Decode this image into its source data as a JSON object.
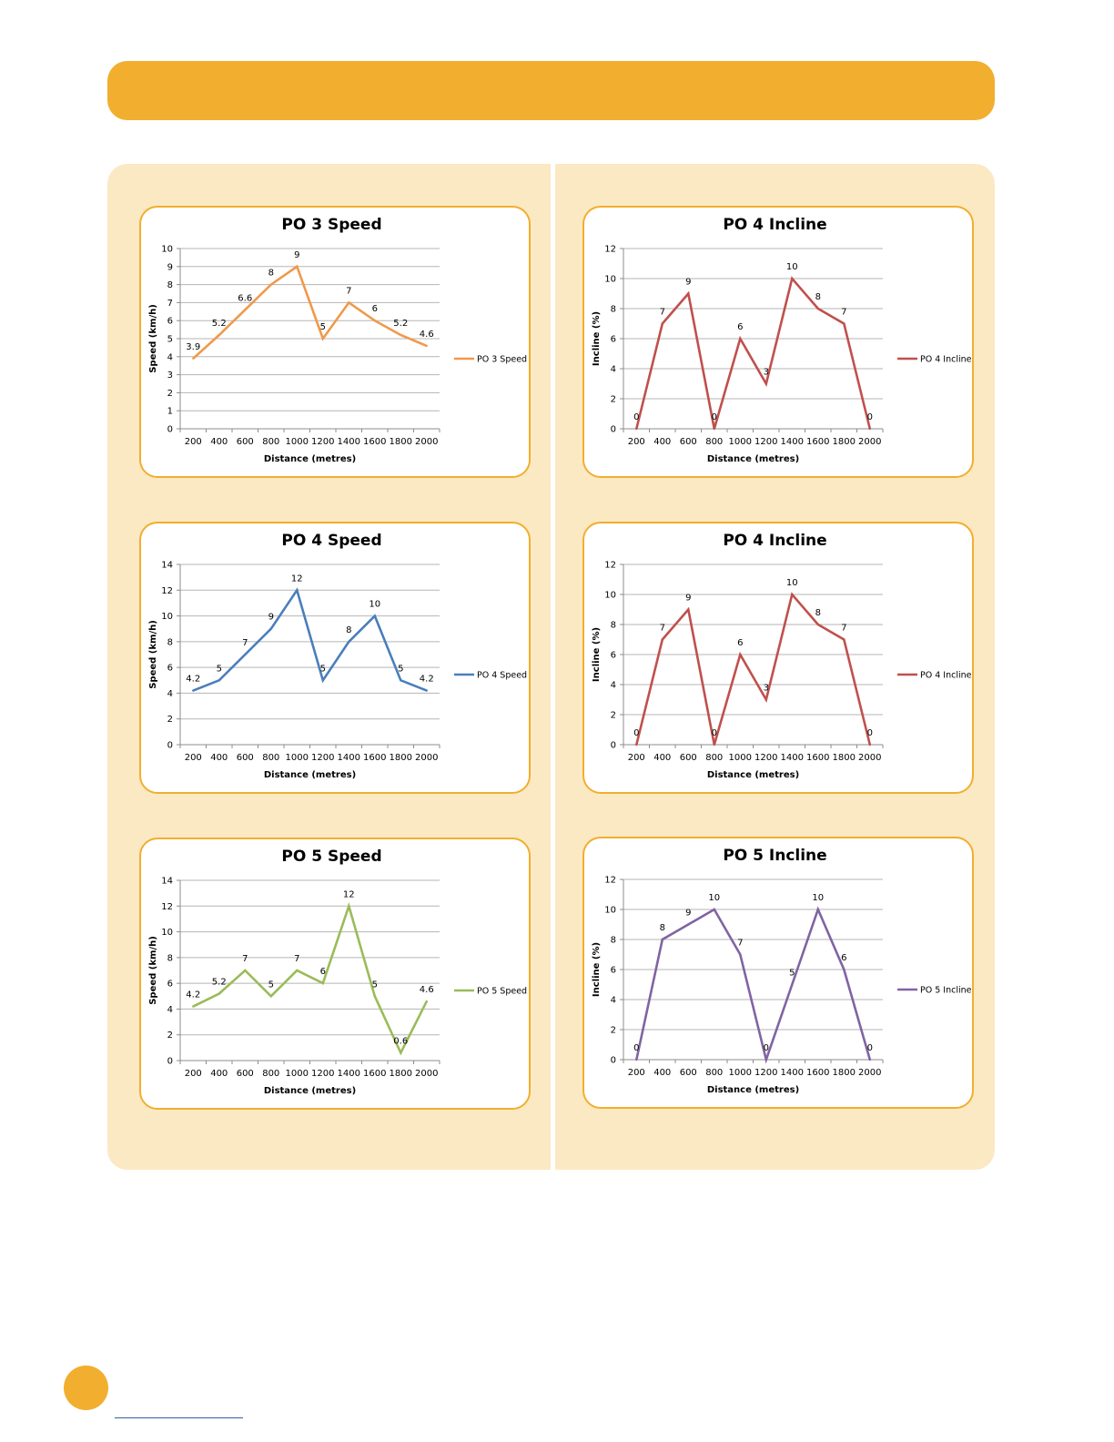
{
  "chart_data": [
    {
      "type": "line",
      "title": "PO 3 Speed",
      "xlabel": "Distance  (metres)",
      "ylabel": "Speed  (km/h)",
      "categories": [
        "200",
        "400",
        "600",
        "800",
        "1000",
        "1200",
        "1400",
        "1600",
        "1800",
        "2000"
      ],
      "series": [
        {
          "name": "PO 3 Speed",
          "values": [
            3.9,
            5.2,
            6.6,
            8,
            9,
            5,
            7,
            6,
            5.2,
            4.6
          ],
          "labels": [
            "3.9",
            "5.2",
            "6.6",
            "8",
            "9",
            "5",
            "7",
            "6",
            "5.2",
            "4.6"
          ]
        }
      ],
      "ylim": [
        0,
        10
      ],
      "yticks": [
        0,
        1,
        2,
        3,
        4,
        5,
        6,
        7,
        8,
        9,
        10
      ],
      "color": "#f0994a",
      "grid": true,
      "legend": "right"
    },
    {
      "type": "line",
      "title": "PO 4 Incline",
      "xlabel": "Distance  (metres)",
      "ylabel": "Incline  (%)",
      "categories": [
        "200",
        "400",
        "600",
        "800",
        "1000",
        "1200",
        "1400",
        "1600",
        "1800",
        "2000"
      ],
      "series": [
        {
          "name": "PO 4 Incline",
          "values": [
            0,
            7,
            9,
            0,
            6,
            3,
            10,
            8,
            7,
            0
          ],
          "labels": [
            "0",
            "7",
            "9",
            "0",
            "6",
            "3",
            "10",
            "8",
            "7",
            "0"
          ]
        }
      ],
      "ylim": [
        0,
        12
      ],
      "yticks": [
        0,
        2,
        4,
        6,
        8,
        10,
        12
      ],
      "color": "#c0504d",
      "grid": true,
      "legend": "right"
    },
    {
      "type": "line",
      "title": "PO 4 Speed",
      "xlabel": "Distance  (metres)",
      "ylabel": "Speed  (km/h)",
      "categories": [
        "200",
        "400",
        "600",
        "800",
        "1000",
        "1200",
        "1400",
        "1600",
        "1800",
        "2000"
      ],
      "series": [
        {
          "name": "PO 4 Speed",
          "values": [
            4.2,
            5,
            7,
            9,
            12,
            5,
            8,
            10,
            5,
            4.2
          ],
          "labels": [
            "4.2",
            "5",
            "7",
            "9",
            "12",
            "5",
            "8",
            "10",
            "5",
            "4.2"
          ]
        }
      ],
      "ylim": [
        0,
        14
      ],
      "yticks": [
        0,
        2,
        4,
        6,
        8,
        10,
        12,
        14
      ],
      "color": "#4a7ebb",
      "grid": true,
      "legend": "right"
    },
    {
      "type": "line",
      "title": "PO 4 Incline",
      "xlabel": "Distance  (metres)",
      "ylabel": "Incline  (%)",
      "categories": [
        "200",
        "400",
        "600",
        "800",
        "1000",
        "1200",
        "1400",
        "1600",
        "1800",
        "2000"
      ],
      "series": [
        {
          "name": "PO 4 Incline",
          "values": [
            0,
            7,
            9,
            0,
            6,
            3,
            10,
            8,
            7,
            0
          ],
          "labels": [
            "0",
            "7",
            "9",
            "0",
            "6",
            "3",
            "10",
            "8",
            "7",
            "0"
          ]
        }
      ],
      "ylim": [
        0,
        12
      ],
      "yticks": [
        0,
        2,
        4,
        6,
        8,
        10,
        12
      ],
      "color": "#c0504d",
      "grid": true,
      "legend": "right"
    },
    {
      "type": "line",
      "title": "PO 5 Speed",
      "xlabel": "Distance  (metres)",
      "ylabel": "Speed  (km/h)",
      "categories": [
        "200",
        "400",
        "600",
        "800",
        "1000",
        "1200",
        "1400",
        "1600",
        "1800",
        "2000"
      ],
      "series": [
        {
          "name": "PO 5 Speed",
          "values": [
            4.2,
            5.2,
            7,
            5,
            7,
            6,
            12,
            5,
            0.6,
            4.6
          ],
          "labels": [
            "4.2",
            "5.2",
            "7",
            "5",
            "7",
            "6",
            "12",
            "5",
            "0.6",
            "4.6"
          ]
        }
      ],
      "ylim": [
        0,
        14
      ],
      "yticks": [
        0,
        2,
        4,
        6,
        8,
        10,
        12,
        14
      ],
      "color": "#9bbb59",
      "grid": true,
      "legend": "right"
    },
    {
      "type": "line",
      "title": "PO 5 Incline",
      "xlabel": "Distance  (metres)",
      "ylabel": "Incline  (%)",
      "categories": [
        "200",
        "400",
        "600",
        "800",
        "1000",
        "1200",
        "1400",
        "1600",
        "1800",
        "2000"
      ],
      "series": [
        {
          "name": "PO 5 Incline",
          "values": [
            0,
            8,
            9,
            10,
            7,
            0,
            5,
            10,
            6,
            0
          ],
          "labels": [
            "0",
            "8",
            "9",
            "10",
            "7",
            "0",
            "5",
            "10",
            "6",
            "0"
          ]
        }
      ],
      "ylim": [
        0,
        12
      ],
      "yticks": [
        0,
        2,
        4,
        6,
        8,
        10,
        12
      ],
      "color": "#8064a2",
      "grid": true,
      "legend": "right"
    }
  ],
  "colors": {
    "accent": "#f2ae2e",
    "panel": "#fbe9c3"
  }
}
